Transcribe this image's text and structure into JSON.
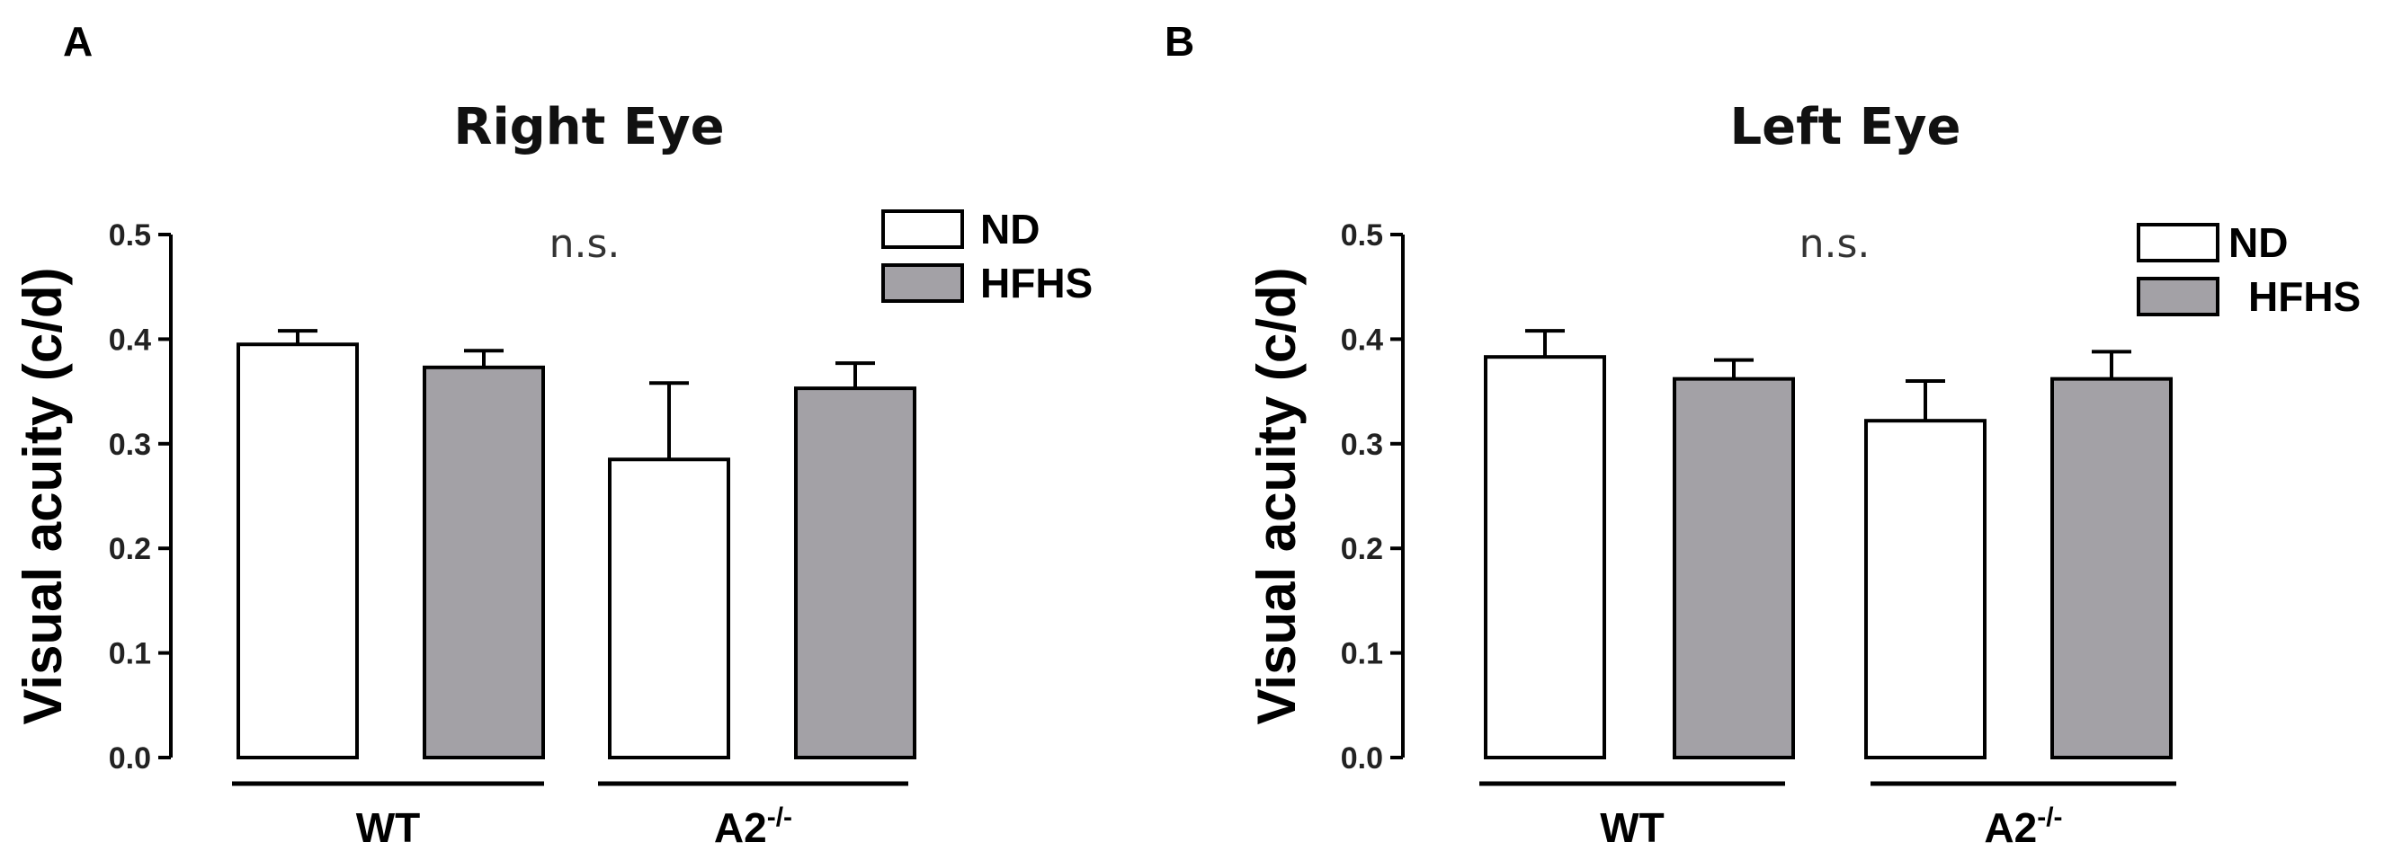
{
  "chart_data": [
    {
      "type": "bar",
      "panel": "A",
      "title": "Right Eye",
      "ylabel": "Visual acuity (c/d)",
      "xlabel": "",
      "ylim": [
        0,
        0.5
      ],
      "yticks": [
        "0.0",
        "0.1",
        "0.2",
        "0.3",
        "0.4",
        "0.5"
      ],
      "annotation": "n.s.",
      "legend_position": "top-right",
      "groups": [
        {
          "label": "WT",
          "superscript": ""
        },
        {
          "label": "A2",
          "superscript": "-/-"
        }
      ],
      "series": [
        {
          "name": "ND",
          "color": "#ffffff",
          "values": [
            0.395,
            0.285
          ],
          "errors": [
            0.013,
            0.073
          ]
        },
        {
          "name": "HFHS",
          "color": "#a3a1a6",
          "values": [
            0.373,
            0.353
          ],
          "errors": [
            0.016,
            0.024
          ]
        }
      ]
    },
    {
      "type": "bar",
      "panel": "B",
      "title": "Left Eye",
      "ylabel": "Visual acuity (c/d)",
      "xlabel": "",
      "ylim": [
        0,
        0.5
      ],
      "yticks": [
        "0.0",
        "0.1",
        "0.2",
        "0.3",
        "0.4",
        "0.5"
      ],
      "annotation": "n.s.",
      "legend_position": "top-right",
      "groups": [
        {
          "label": "WT",
          "superscript": ""
        },
        {
          "label": "A2",
          "superscript": "-/-"
        }
      ],
      "series": [
        {
          "name": "ND",
          "color": "#ffffff",
          "values": [
            0.383,
            0.322
          ],
          "errors": [
            0.025,
            0.038
          ]
        },
        {
          "name": "HFHS",
          "color": "#a3a1a6",
          "values": [
            0.362,
            0.362
          ],
          "errors": [
            0.018,
            0.026
          ]
        }
      ]
    }
  ]
}
